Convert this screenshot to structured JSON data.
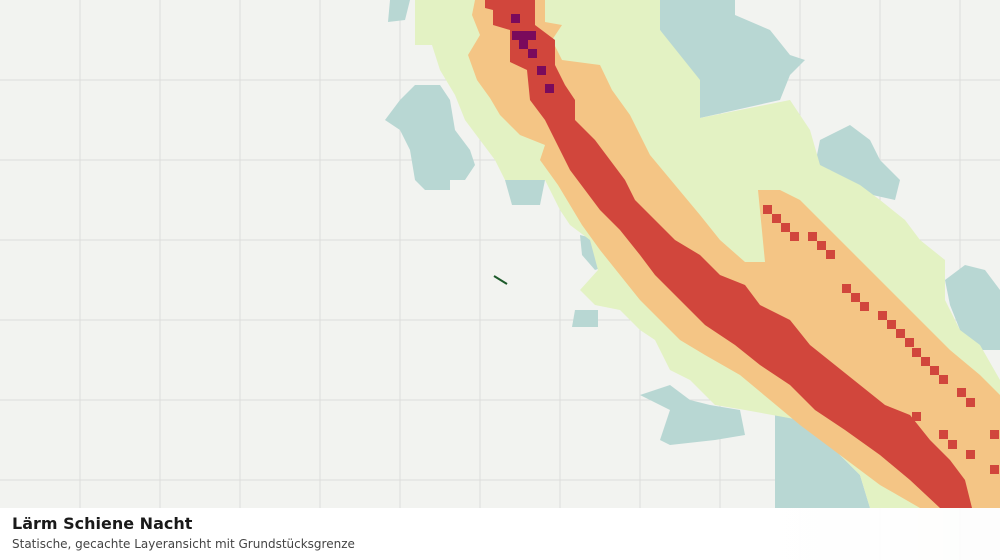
{
  "legend": {
    "title": "Lärm Schiene Nacht",
    "subtitle": "Statische, gecachte Layeransicht mit Grundstücksgrenze"
  }
}
